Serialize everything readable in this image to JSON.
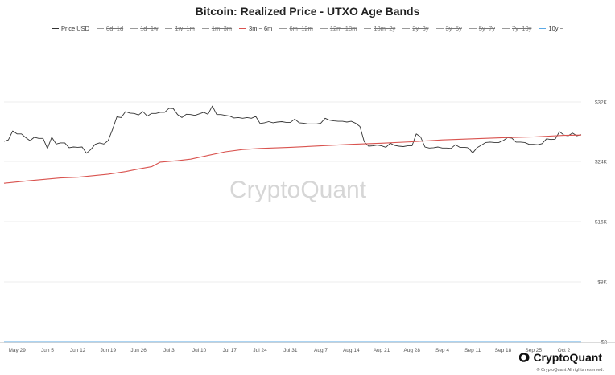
{
  "chart_data": {
    "type": "line",
    "title": "Bitcoin: Realized Price - UTXO Age Bands",
    "watermark": "CryptoQuant",
    "y_axis": {
      "position": "right",
      "scale": "log",
      "ticks": [
        {
          "value": 32000,
          "label": "$32K"
        },
        {
          "value": 24000,
          "label": "$24K"
        },
        {
          "value": 16000,
          "label": "$16K"
        },
        {
          "value": 8000,
          "label": "$8K"
        },
        {
          "value": 0,
          "label": "$0"
        }
      ]
    },
    "x_axis": {
      "ticks": [
        {
          "date": "2023-05-29",
          "label": "May 29"
        },
        {
          "date": "2023-06-05",
          "label": "Jun 5"
        },
        {
          "date": "2023-06-12",
          "label": "Jun 12"
        },
        {
          "date": "2023-06-19",
          "label": "Jun 19"
        },
        {
          "date": "2023-06-26",
          "label": "Jun 26"
        },
        {
          "date": "2023-07-03",
          "label": "Jul 3"
        },
        {
          "date": "2023-07-10",
          "label": "Jul 10"
        },
        {
          "date": "2023-07-17",
          "label": "Jul 17"
        },
        {
          "date": "2023-07-24",
          "label": "Jul 24"
        },
        {
          "date": "2023-07-31",
          "label": "Jul 31"
        },
        {
          "date": "2023-08-07",
          "label": "Aug 7"
        },
        {
          "date": "2023-08-14",
          "label": "Aug 14"
        },
        {
          "date": "2023-08-21",
          "label": "Aug 21"
        },
        {
          "date": "2023-08-28",
          "label": "Aug 28"
        },
        {
          "date": "2023-09-04",
          "label": "Sep 4"
        },
        {
          "date": "2023-09-11",
          "label": "Sep 11"
        },
        {
          "date": "2023-09-18",
          "label": "Sep 18"
        },
        {
          "date": "2023-09-25",
          "label": "Sep 25"
        },
        {
          "date": "2023-10-02",
          "label": "Oct 2"
        }
      ]
    },
    "legend": [
      {
        "name": "Price USD",
        "color": "#333333",
        "visible": true
      },
      {
        "name": "0d~1d",
        "color": "#9a9a9a",
        "visible": false
      },
      {
        "name": "1d~1w",
        "color": "#9a9a9a",
        "visible": false
      },
      {
        "name": "1w~1m",
        "color": "#9a9a9a",
        "visible": false
      },
      {
        "name": "1m~3m",
        "color": "#9a9a9a",
        "visible": false
      },
      {
        "name": "3m ~ 6m",
        "color": "#d9534f",
        "visible": true
      },
      {
        "name": "6m~12m",
        "color": "#9a9a9a",
        "visible": false
      },
      {
        "name": "12m~18m",
        "color": "#9a9a9a",
        "visible": false
      },
      {
        "name": "18m~2y",
        "color": "#9a9a9a",
        "visible": false
      },
      {
        "name": "2y~3y",
        "color": "#9a9a9a",
        "visible": false
      },
      {
        "name": "3y~5y",
        "color": "#9a9a9a",
        "visible": false
      },
      {
        "name": "5y~7y",
        "color": "#9a9a9a",
        "visible": false
      },
      {
        "name": "7y~10y",
        "color": "#9a9a9a",
        "visible": false
      },
      {
        "name": "10y ~",
        "color": "#5aa9e6",
        "visible": true
      }
    ],
    "series": [
      {
        "name": "Price USD",
        "color": "#333333",
        "points": [
          [
            "2023-05-26",
            26700
          ],
          [
            "2023-05-27",
            26900
          ],
          [
            "2023-05-28",
            28100
          ],
          [
            "2023-05-29",
            27700
          ],
          [
            "2023-05-30",
            27700
          ],
          [
            "2023-05-31",
            27200
          ],
          [
            "2023-06-01",
            26800
          ],
          [
            "2023-06-02",
            27250
          ],
          [
            "2023-06-03",
            27100
          ],
          [
            "2023-06-04",
            27100
          ],
          [
            "2023-06-05",
            25750
          ],
          [
            "2023-06-06",
            27250
          ],
          [
            "2023-06-07",
            26350
          ],
          [
            "2023-06-08",
            26500
          ],
          [
            "2023-06-09",
            26500
          ],
          [
            "2023-06-10",
            25850
          ],
          [
            "2023-06-11",
            25950
          ],
          [
            "2023-06-12",
            25900
          ],
          [
            "2023-06-13",
            25950
          ],
          [
            "2023-06-14",
            25100
          ],
          [
            "2023-06-15",
            25600
          ],
          [
            "2023-06-16",
            26300
          ],
          [
            "2023-06-17",
            26500
          ],
          [
            "2023-06-18",
            26350
          ],
          [
            "2023-06-19",
            26800
          ],
          [
            "2023-06-20",
            28300
          ],
          [
            "2023-06-21",
            30000
          ],
          [
            "2023-06-22",
            29900
          ],
          [
            "2023-06-23",
            30700
          ],
          [
            "2023-06-24",
            30500
          ],
          [
            "2023-06-25",
            30450
          ],
          [
            "2023-06-26",
            30250
          ],
          [
            "2023-06-27",
            30700
          ],
          [
            "2023-06-28",
            30100
          ],
          [
            "2023-06-29",
            30450
          ],
          [
            "2023-06-30",
            30450
          ],
          [
            "2023-07-01",
            30600
          ],
          [
            "2023-07-02",
            30600
          ],
          [
            "2023-07-03",
            31150
          ],
          [
            "2023-07-04",
            31100
          ],
          [
            "2023-07-05",
            30300
          ],
          [
            "2023-07-06",
            29900
          ],
          [
            "2023-07-07",
            30350
          ],
          [
            "2023-07-08",
            30300
          ],
          [
            "2023-07-09",
            30200
          ],
          [
            "2023-07-10",
            30400
          ],
          [
            "2023-07-11",
            30600
          ],
          [
            "2023-07-12",
            30350
          ],
          [
            "2023-07-13",
            31450
          ],
          [
            "2023-07-14",
            30300
          ],
          [
            "2023-07-15",
            30300
          ],
          [
            "2023-07-16",
            30200
          ],
          [
            "2023-07-17",
            30100
          ],
          [
            "2023-07-18",
            29850
          ],
          [
            "2023-07-19",
            29900
          ],
          [
            "2023-07-20",
            29800
          ],
          [
            "2023-07-21",
            29900
          ],
          [
            "2023-07-22",
            29800
          ],
          [
            "2023-07-23",
            30050
          ],
          [
            "2023-07-24",
            29100
          ],
          [
            "2023-07-25",
            29200
          ],
          [
            "2023-07-26",
            29350
          ],
          [
            "2023-07-27",
            29200
          ],
          [
            "2023-07-28",
            29300
          ],
          [
            "2023-07-29",
            29350
          ],
          [
            "2023-07-30",
            29250
          ],
          [
            "2023-07-31",
            29250
          ],
          [
            "2023-08-01",
            29700
          ],
          [
            "2023-08-02",
            29200
          ],
          [
            "2023-08-03",
            29150
          ],
          [
            "2023-08-04",
            29050
          ],
          [
            "2023-08-05",
            29050
          ],
          [
            "2023-08-06",
            29050
          ],
          [
            "2023-08-07",
            29150
          ],
          [
            "2023-08-08",
            29800
          ],
          [
            "2023-08-09",
            29550
          ],
          [
            "2023-08-10",
            29450
          ],
          [
            "2023-08-11",
            29400
          ],
          [
            "2023-08-12",
            29400
          ],
          [
            "2023-08-13",
            29300
          ],
          [
            "2023-08-14",
            29400
          ],
          [
            "2023-08-15",
            29150
          ],
          [
            "2023-08-16",
            28700
          ],
          [
            "2023-08-17",
            26650
          ],
          [
            "2023-08-18",
            26050
          ],
          [
            "2023-08-19",
            26100
          ],
          [
            "2023-08-20",
            26200
          ],
          [
            "2023-08-21",
            26100
          ],
          [
            "2023-08-22",
            25900
          ],
          [
            "2023-08-23",
            26450
          ],
          [
            "2023-08-24",
            26150
          ],
          [
            "2023-08-25",
            26050
          ],
          [
            "2023-08-26",
            26000
          ],
          [
            "2023-08-27",
            26100
          ],
          [
            "2023-08-28",
            26100
          ],
          [
            "2023-08-29",
            27700
          ],
          [
            "2023-08-30",
            27300
          ],
          [
            "2023-08-31",
            25950
          ],
          [
            "2023-09-01",
            25800
          ],
          [
            "2023-09-02",
            25850
          ],
          [
            "2023-09-03",
            25950
          ],
          [
            "2023-09-04",
            25800
          ],
          [
            "2023-09-05",
            25800
          ],
          [
            "2023-09-06",
            25750
          ],
          [
            "2023-09-07",
            26250
          ],
          [
            "2023-09-08",
            25900
          ],
          [
            "2023-09-09",
            25900
          ],
          [
            "2023-09-10",
            25850
          ],
          [
            "2023-09-11",
            25150
          ],
          [
            "2023-09-12",
            25850
          ],
          [
            "2023-09-13",
            26200
          ],
          [
            "2023-09-14",
            26550
          ],
          [
            "2023-09-15",
            26600
          ],
          [
            "2023-09-16",
            26550
          ],
          [
            "2023-09-17",
            26550
          ],
          [
            "2023-09-18",
            26800
          ],
          [
            "2023-09-19",
            27200
          ],
          [
            "2023-09-20",
            27150
          ],
          [
            "2023-09-21",
            26600
          ],
          [
            "2023-09-22",
            26600
          ],
          [
            "2023-09-23",
            26550
          ],
          [
            "2023-09-24",
            26300
          ],
          [
            "2023-09-25",
            26300
          ],
          [
            "2023-09-26",
            26250
          ],
          [
            "2023-09-27",
            26400
          ],
          [
            "2023-09-28",
            27050
          ],
          [
            "2023-09-29",
            26950
          ],
          [
            "2023-09-30",
            27000
          ],
          [
            "2023-10-01",
            28000
          ],
          [
            "2023-10-02",
            27550
          ],
          [
            "2023-10-03",
            27450
          ],
          [
            "2023-10-04",
            27800
          ],
          [
            "2023-10-05",
            27450
          ],
          [
            "2023-10-06",
            27600
          ]
        ]
      },
      {
        "name": "3m ~ 6m",
        "color": "#d9534f",
        "points": [
          [
            "2023-05-26",
            21100
          ],
          [
            "2023-06-01",
            21450
          ],
          [
            "2023-06-08",
            21800
          ],
          [
            "2023-06-12",
            21900
          ],
          [
            "2023-06-19",
            22300
          ],
          [
            "2023-06-23",
            22650
          ],
          [
            "2023-06-26",
            23000
          ],
          [
            "2023-06-29",
            23300
          ],
          [
            "2023-07-01",
            23900
          ],
          [
            "2023-07-05",
            24100
          ],
          [
            "2023-07-08",
            24300
          ],
          [
            "2023-07-12",
            24800
          ],
          [
            "2023-07-16",
            25300
          ],
          [
            "2023-07-20",
            25600
          ],
          [
            "2023-07-24",
            25750
          ],
          [
            "2023-07-31",
            25900
          ],
          [
            "2023-08-07",
            26100
          ],
          [
            "2023-08-14",
            26300
          ],
          [
            "2023-08-21",
            26450
          ],
          [
            "2023-08-28",
            26650
          ],
          [
            "2023-09-04",
            26900
          ],
          [
            "2023-09-11",
            27050
          ],
          [
            "2023-09-18",
            27200
          ],
          [
            "2023-09-25",
            27300
          ],
          [
            "2023-10-02",
            27500
          ],
          [
            "2023-10-06",
            27550
          ]
        ]
      },
      {
        "name": "10y ~",
        "color": "#5aa9e6",
        "points": [
          [
            "2023-05-26",
            0.3
          ],
          [
            "2023-10-06",
            0.3
          ]
        ]
      }
    ]
  },
  "footer": {
    "brand": "CryptoQuant",
    "copyright": "© CryptoQuant All rights reserved."
  }
}
